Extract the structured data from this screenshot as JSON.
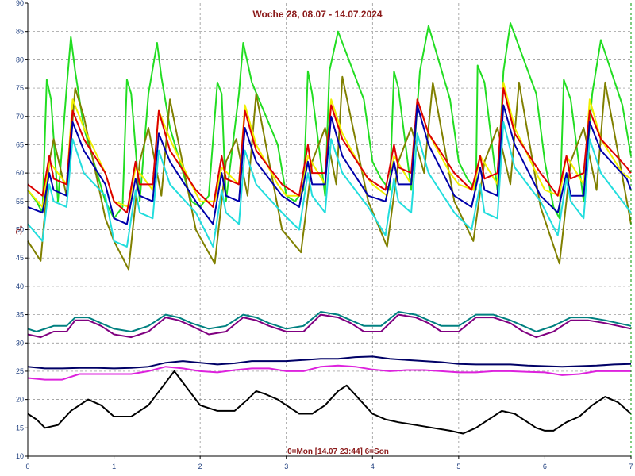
{
  "chart_data": {
    "type": "line",
    "title": "Woche 28, 08.07 - 14.07.2024",
    "footer": "0=Mon [14.07 23:44] 6=Son",
    "ylabel": "°C",
    "xlim": [
      0,
      7
    ],
    "ylim": [
      10,
      90
    ],
    "x_ticks": [
      "0",
      "1",
      "2",
      "3",
      "4",
      "5",
      "6",
      "7"
    ],
    "y_ticks": [
      "10",
      "15",
      "20",
      "25",
      "30",
      "35",
      "40",
      "45",
      "50",
      "55",
      "60",
      "65",
      "70",
      "75",
      "80",
      "85",
      "90"
    ],
    "grid": true,
    "colors": {
      "green": "#22dd22",
      "olive": "#808000",
      "yellow": "#f0f000",
      "red": "#dd0000",
      "blue": "#0000aa",
      "cyan": "#22dddd",
      "teal": "#008080",
      "purple": "#800080",
      "navy": "#000066",
      "magenta": "#dd22dd",
      "black": "#000000",
      "grid": "#888888",
      "text": "#8b1a1a",
      "tick": "#1f3f7f",
      "edge": "#009900"
    },
    "series": [
      {
        "color_key": "green",
        "x": [
          0,
          0.1,
          0.17,
          0.22,
          0.27,
          0.35,
          0.45,
          0.5,
          0.55,
          0.65,
          0.9,
          1.0,
          1.1,
          1.15,
          1.2,
          1.3,
          1.4,
          1.5,
          1.55,
          1.65,
          1.9,
          2.0,
          2.1,
          2.2,
          2.25,
          2.3,
          2.45,
          2.5,
          2.6,
          2.9,
          3.0,
          3.1,
          3.2,
          3.25,
          3.3,
          3.45,
          3.5,
          3.6,
          3.9,
          4.0,
          4.1,
          4.2,
          4.25,
          4.3,
          4.45,
          4.55,
          4.65,
          4.9,
          5.0,
          5.1,
          5.2,
          5.22,
          5.3,
          5.45,
          5.52,
          5.6,
          5.9,
          6.0,
          6.1,
          6.17,
          6.22,
          6.3,
          6.45,
          6.55,
          6.65,
          6.9,
          7.0
        ],
        "y": [
          57,
          55,
          53,
          76.5,
          73,
          55,
          75,
          84,
          78,
          68,
          55,
          52,
          54,
          76.5,
          74,
          55,
          74,
          83,
          77,
          68,
          55,
          54,
          56,
          76,
          74,
          55,
          74,
          83,
          76,
          65,
          56,
          55,
          57,
          78,
          74,
          56,
          78,
          85,
          73,
          62,
          59,
          57,
          78,
          75,
          57,
          78,
          86,
          73,
          62,
          59,
          57,
          79,
          76,
          57,
          78,
          86.5,
          74,
          62,
          54,
          52,
          76.5,
          73,
          55,
          74,
          83.5,
          72,
          63
        ]
      },
      {
        "color_key": "olive",
        "x": [
          0,
          0.15,
          0.25,
          0.3,
          0.45,
          0.55,
          0.65,
          0.9,
          1.0,
          1.17,
          1.3,
          1.4,
          1.55,
          1.65,
          1.95,
          2.17,
          2.3,
          2.42,
          2.55,
          2.65,
          2.95,
          3.17,
          3.3,
          3.45,
          3.58,
          3.65,
          3.95,
          4.17,
          4.3,
          4.45,
          4.6,
          4.7,
          4.95,
          5.17,
          5.3,
          5.45,
          5.6,
          5.7,
          5.95,
          6.17,
          6.3,
          6.45,
          6.6,
          6.7,
          7.0
        ],
        "y": [
          48,
          44.5,
          62,
          66,
          56,
          75,
          70,
          52,
          48,
          43,
          62,
          68,
          56,
          73,
          50,
          44,
          62,
          66,
          56,
          74,
          50,
          46,
          62,
          68,
          58,
          77,
          55,
          47,
          62,
          68,
          60,
          76,
          55,
          48,
          62,
          68,
          58,
          76,
          54,
          44,
          62,
          68,
          57,
          76,
          51
        ]
      },
      {
        "color_key": "yellow",
        "x": [
          0,
          0.17,
          0.25,
          0.45,
          0.52,
          0.65,
          0.9,
          1.0,
          1.17,
          1.25,
          1.45,
          1.52,
          1.65,
          1.9,
          2.0,
          2.17,
          2.25,
          2.45,
          2.52,
          2.65,
          2.9,
          3.0,
          3.17,
          3.25,
          3.45,
          3.52,
          3.65,
          3.9,
          4.0,
          4.17,
          4.25,
          4.45,
          4.52,
          4.65,
          4.9,
          5.0,
          5.17,
          5.25,
          5.45,
          5.52,
          5.65,
          5.9,
          6.0,
          6.17,
          6.25,
          6.45,
          6.52,
          6.65,
          6.9,
          7.0
        ],
        "y": [
          57,
          54,
          62,
          58,
          73,
          68,
          60,
          55,
          54,
          61,
          57,
          71,
          66,
          58,
          55,
          55,
          61,
          58,
          72,
          65,
          58,
          56,
          56,
          63,
          58,
          73,
          67,
          60,
          58,
          56,
          63,
          58,
          73,
          67,
          60,
          58,
          57,
          63,
          58,
          76,
          68,
          60,
          57,
          56,
          63,
          58,
          73,
          66,
          60,
          59
        ]
      },
      {
        "color_key": "red",
        "x": [
          0,
          0.17,
          0.25,
          0.3,
          0.45,
          0.52,
          0.65,
          0.9,
          1.0,
          1.15,
          1.25,
          1.3,
          1.45,
          1.52,
          1.65,
          1.95,
          2.15,
          2.25,
          2.3,
          2.45,
          2.52,
          2.65,
          2.95,
          3.15,
          3.25,
          3.3,
          3.45,
          3.52,
          3.65,
          3.95,
          4.15,
          4.25,
          4.3,
          4.45,
          4.52,
          4.65,
          4.95,
          5.15,
          5.25,
          5.3,
          5.45,
          5.52,
          5.65,
          5.95,
          6.15,
          6.25,
          6.3,
          6.45,
          6.52,
          6.65,
          6.95,
          7.0
        ],
        "y": [
          58,
          56,
          63,
          59,
          58,
          71,
          66,
          60,
          55,
          53,
          62,
          58,
          58,
          71,
          64,
          57,
          54,
          63,
          59,
          58,
          71,
          64,
          58,
          56,
          65,
          60,
          60,
          72,
          66,
          59,
          57,
          65,
          61,
          60,
          73,
          67,
          60,
          57,
          63,
          59,
          60,
          75,
          67,
          60,
          56,
          63,
          59,
          60,
          71,
          66,
          61,
          60
        ]
      },
      {
        "color_key": "blue",
        "x": [
          0,
          0.17,
          0.25,
          0.3,
          0.45,
          0.52,
          0.65,
          0.9,
          1.0,
          1.15,
          1.25,
          1.3,
          1.45,
          1.52,
          1.65,
          1.95,
          2.15,
          2.25,
          2.3,
          2.45,
          2.52,
          2.65,
          2.95,
          3.15,
          3.25,
          3.3,
          3.45,
          3.52,
          3.65,
          3.95,
          4.15,
          4.25,
          4.3,
          4.45,
          4.52,
          4.65,
          4.95,
          5.15,
          5.25,
          5.3,
          5.45,
          5.52,
          5.65,
          5.95,
          6.15,
          6.25,
          6.3,
          6.45,
          6.52,
          6.65,
          6.95,
          7.0
        ],
        "y": [
          54,
          53,
          60,
          57,
          56,
          69,
          64,
          58,
          52,
          51,
          59,
          56,
          55,
          67,
          62,
          55,
          51,
          60,
          56,
          55,
          68,
          62,
          56,
          54,
          62,
          58,
          58,
          70,
          63,
          56,
          55,
          62,
          58,
          58,
          72,
          65,
          56,
          54,
          61,
          57,
          56,
          72,
          65,
          56,
          53,
          60,
          56,
          56,
          69,
          64,
          59,
          57
        ]
      },
      {
        "color_key": "cyan",
        "x": [
          0,
          0.17,
          0.25,
          0.3,
          0.45,
          0.52,
          0.65,
          0.9,
          1.0,
          1.15,
          1.25,
          1.3,
          1.45,
          1.52,
          1.65,
          1.95,
          2.15,
          2.25,
          2.3,
          2.45,
          2.52,
          2.65,
          2.95,
          3.15,
          3.25,
          3.3,
          3.45,
          3.52,
          3.65,
          3.95,
          4.15,
          4.25,
          4.3,
          4.45,
          4.52,
          4.65,
          4.95,
          5.15,
          5.25,
          5.3,
          5.45,
          5.52,
          5.65,
          5.95,
          6.15,
          6.25,
          6.3,
          6.45,
          6.52,
          6.65,
          6.95,
          7.0
        ],
        "y": [
          51,
          48,
          58,
          55,
          54,
          66,
          60,
          56,
          48,
          47,
          57,
          53,
          52,
          64,
          58,
          53,
          47,
          57,
          53,
          51,
          64,
          58,
          53,
          50,
          60,
          56,
          53,
          66,
          60,
          54,
          49,
          59,
          55,
          53,
          67,
          60,
          53,
          50,
          58,
          53,
          52,
          69,
          61,
          55,
          49,
          59,
          55,
          52,
          66,
          60,
          54,
          53
        ]
      },
      {
        "color_key": "teal",
        "x": [
          0,
          0.1,
          0.3,
          0.45,
          0.55,
          0.7,
          0.85,
          1.0,
          1.2,
          1.4,
          1.6,
          1.75,
          1.9,
          2.1,
          2.3,
          2.5,
          2.65,
          2.8,
          3.0,
          3.2,
          3.4,
          3.6,
          3.75,
          3.9,
          4.1,
          4.3,
          4.5,
          4.65,
          4.8,
          5.0,
          5.2,
          5.4,
          5.6,
          5.75,
          5.9,
          6.1,
          6.3,
          6.5,
          6.7,
          6.85,
          7.0
        ],
        "y": [
          32.5,
          32,
          33,
          33,
          34.5,
          34.5,
          33.5,
          32.5,
          32,
          33,
          35,
          34.5,
          33.5,
          32.5,
          33,
          35,
          34.5,
          33.5,
          32.5,
          33,
          35.5,
          35,
          34,
          33,
          33,
          35.5,
          35,
          34,
          33,
          33,
          35,
          35,
          34,
          33,
          32,
          33,
          34.5,
          34.5,
          34,
          33.5,
          33
        ]
      },
      {
        "color_key": "purple",
        "x": [
          0,
          0.15,
          0.3,
          0.45,
          0.55,
          0.7,
          0.85,
          1.0,
          1.2,
          1.4,
          1.6,
          1.75,
          1.9,
          2.1,
          2.3,
          2.5,
          2.65,
          2.8,
          3.0,
          3.2,
          3.4,
          3.6,
          3.75,
          3.9,
          4.1,
          4.3,
          4.5,
          4.65,
          4.8,
          5.0,
          5.2,
          5.4,
          5.6,
          5.75,
          5.9,
          6.1,
          6.3,
          6.5,
          6.7,
          6.85,
          7.0
        ],
        "y": [
          31.5,
          31,
          32,
          32,
          34,
          34,
          33,
          31.5,
          31,
          32,
          34.5,
          34,
          33,
          31.5,
          32,
          34.5,
          34,
          33,
          32,
          32,
          35,
          34.5,
          33.5,
          32,
          32,
          35,
          34.5,
          33.5,
          32,
          32,
          34.5,
          34.5,
          33.5,
          32,
          31,
          32,
          34,
          34,
          33.5,
          33,
          32.5
        ]
      },
      {
        "color_key": "navy",
        "x": [
          0,
          0.2,
          0.4,
          0.6,
          0.8,
          1.0,
          1.2,
          1.4,
          1.6,
          1.8,
          2.0,
          2.2,
          2.4,
          2.6,
          2.8,
          3.0,
          3.2,
          3.4,
          3.6,
          3.8,
          4.0,
          4.2,
          4.4,
          4.6,
          4.8,
          5.0,
          5.2,
          5.4,
          5.6,
          5.8,
          6.0,
          6.2,
          6.4,
          6.6,
          6.8,
          7.0
        ],
        "y": [
          25.8,
          25.5,
          25.5,
          25.6,
          25.6,
          25.5,
          25.6,
          25.8,
          26.5,
          26.8,
          26.5,
          26.2,
          26.4,
          26.8,
          26.8,
          26.8,
          27.0,
          27.2,
          27.2,
          27.5,
          27.6,
          27.2,
          27.0,
          26.8,
          26.6,
          26.3,
          26.2,
          26.2,
          26.2,
          26.0,
          25.9,
          25.8,
          25.9,
          26.0,
          26.2,
          26.3
        ]
      },
      {
        "color_key": "magenta",
        "x": [
          0,
          0.2,
          0.4,
          0.6,
          0.8,
          1.0,
          1.2,
          1.4,
          1.6,
          1.8,
          2.0,
          2.2,
          2.4,
          2.6,
          2.8,
          3.0,
          3.2,
          3.4,
          3.6,
          3.8,
          4.0,
          4.2,
          4.4,
          4.6,
          4.8,
          5.0,
          5.2,
          5.4,
          5.6,
          5.8,
          6.0,
          6.2,
          6.4,
          6.6,
          6.8,
          7.0
        ],
        "y": [
          23.8,
          23.5,
          23.5,
          24.5,
          24.5,
          24.5,
          24.5,
          25,
          25.8,
          25.5,
          25,
          24.8,
          25.2,
          25.5,
          25.5,
          25.0,
          25.0,
          25.8,
          26.0,
          25.8,
          25.3,
          25.0,
          25.2,
          25.2,
          25.0,
          24.8,
          24.8,
          25.0,
          25.0,
          24.9,
          24.8,
          24.3,
          24.5,
          25.0,
          25.0,
          25.0
        ]
      },
      {
        "color_key": "black",
        "x": [
          0,
          0.1,
          0.2,
          0.35,
          0.5,
          0.7,
          0.85,
          1.0,
          1.2,
          1.4,
          1.6,
          1.7,
          1.85,
          2.0,
          2.2,
          2.4,
          2.55,
          2.65,
          2.75,
          2.9,
          3.0,
          3.15,
          3.3,
          3.45,
          3.6,
          3.7,
          3.85,
          4.0,
          4.15,
          4.3,
          4.5,
          4.7,
          4.9,
          5.05,
          5.2,
          5.35,
          5.5,
          5.65,
          5.8,
          5.9,
          6.0,
          6.1,
          6.25,
          6.4,
          6.55,
          6.7,
          6.85,
          7.0
        ],
        "y": [
          17.5,
          16.5,
          15,
          15.5,
          18,
          20,
          19,
          17,
          17,
          19,
          23,
          25,
          22,
          19,
          18,
          18,
          20,
          21.5,
          21,
          20,
          19,
          17.5,
          17.5,
          19,
          21.5,
          22.5,
          20,
          17.5,
          16.5,
          16,
          15.5,
          15,
          14.5,
          14,
          15,
          16.5,
          18,
          17.5,
          16,
          15,
          14.5,
          14.5,
          16,
          17,
          19,
          20.5,
          19.5,
          17.5
        ]
      }
    ]
  }
}
